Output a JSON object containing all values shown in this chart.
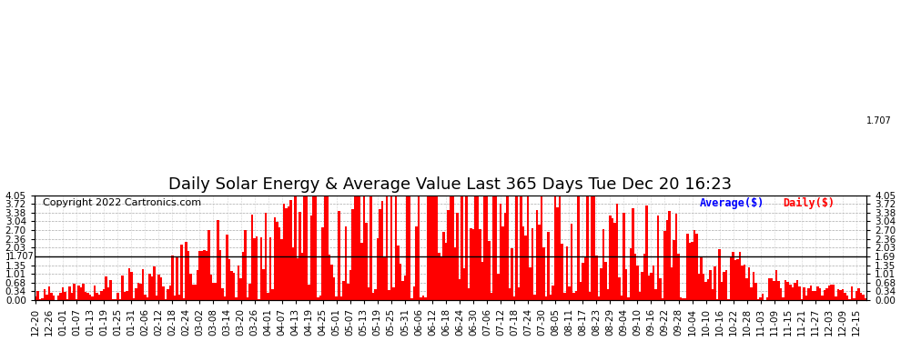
{
  "title": "Daily Solar Energy & Average Value Last 365 Days Tue Dec 20 16:23",
  "copyright": "Copyright 2022 Cartronics.com",
  "average_value": 1.707,
  "average_label": "1.707",
  "average_line_color": "#000000",
  "bar_color": "#ff0000",
  "ymin": 0.0,
  "ymax": 4.05,
  "yticks": [
    0.0,
    0.34,
    0.68,
    1.01,
    1.35,
    1.69,
    2.03,
    2.36,
    2.7,
    3.04,
    3.38,
    3.72,
    4.05
  ],
  "legend_average_label": "Average($)",
  "legend_average_color": "blue",
  "legend_daily_label": "Daily($)",
  "legend_daily_color": "red",
  "background_color": "#ffffff",
  "grid_color": "#aaaaaa",
  "title_fontsize": 13,
  "copyright_fontsize": 8,
  "tick_fontsize": 7.5,
  "num_bars": 365,
  "x_tick_every": 6,
  "x_labels": [
    "12-20",
    "12-26",
    "01-01",
    "01-07",
    "01-13",
    "01-19",
    "01-25",
    "01-31",
    "02-06",
    "02-12",
    "02-18",
    "02-24",
    "03-02",
    "03-08",
    "03-14",
    "03-20",
    "03-26",
    "04-01",
    "04-07",
    "04-13",
    "04-19",
    "04-25",
    "05-01",
    "05-07",
    "05-13",
    "05-19",
    "05-25",
    "05-31",
    "06-06",
    "06-12",
    "06-18",
    "06-24",
    "06-30",
    "07-06",
    "07-12",
    "07-18",
    "07-24",
    "07-30",
    "08-05",
    "08-11",
    "08-17",
    "08-23",
    "08-29",
    "09-04",
    "09-10",
    "09-16",
    "09-22",
    "09-28",
    "10-04",
    "10-10",
    "10-16",
    "10-22",
    "10-28",
    "11-03",
    "11-09",
    "11-15",
    "11-21",
    "11-27",
    "12-03",
    "12-09",
    "12-15"
  ]
}
